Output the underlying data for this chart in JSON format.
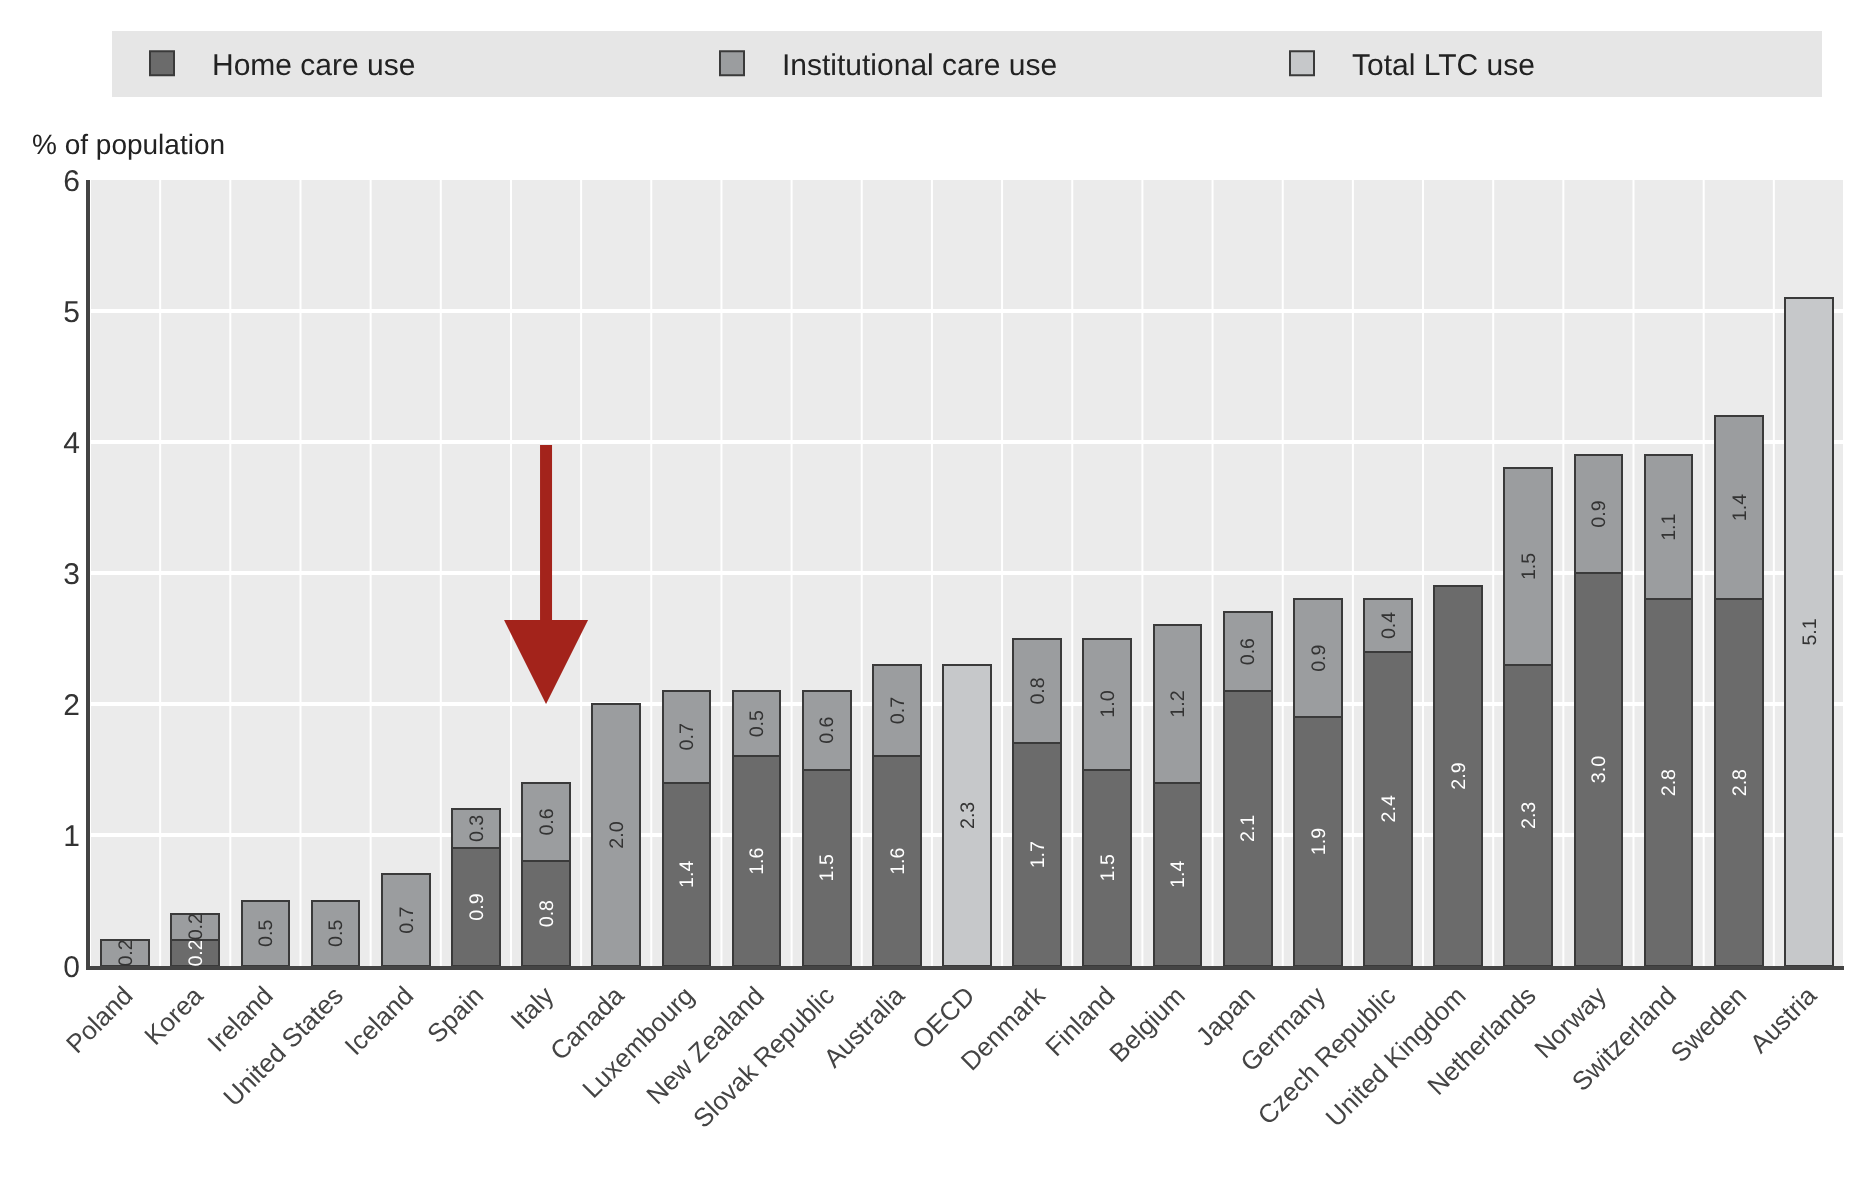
{
  "chart_data": {
    "type": "bar",
    "stacked": true,
    "ylabel": "% of population",
    "categories": [
      "Poland",
      "Korea",
      "Ireland",
      "United States",
      "Iceland",
      "Spain",
      "Italy",
      "Canada",
      "Luxembourg",
      "New Zealand",
      "Slovak Republic",
      "Australia",
      "OECD",
      "Denmark",
      "Finland",
      "Belgium",
      "Japan",
      "Germany",
      "Czech Republic",
      "United Kingdom",
      "Netherlands",
      "Norway",
      "Switzerland",
      "Sweden",
      "Austria"
    ],
    "series": [
      {
        "name": "Home care use",
        "color": "#6b6b6b",
        "values": [
          null,
          0.2,
          null,
          null,
          null,
          0.9,
          0.8,
          null,
          1.4,
          1.6,
          1.5,
          1.6,
          null,
          1.7,
          1.5,
          1.4,
          2.1,
          1.9,
          2.4,
          2.9,
          2.3,
          3.0,
          2.8,
          2.8,
          null
        ],
        "value_labels": [
          null,
          "0.2",
          null,
          null,
          null,
          "0.9",
          "0.8",
          null,
          "1.4",
          "1.6",
          "1.5",
          "1.6",
          null,
          "1.7",
          "1.5",
          "1.4",
          "2.1",
          "1.9",
          "2.4",
          "2.9",
          "2.3",
          "3.0",
          "2.8",
          "2.8",
          null
        ]
      },
      {
        "name": "Institutional care use",
        "color": "#9b9d9f",
        "values": [
          0.2,
          0.2,
          0.5,
          0.5,
          0.7,
          0.3,
          0.6,
          2.0,
          0.7,
          0.5,
          0.6,
          0.7,
          null,
          0.8,
          1.0,
          1.2,
          0.6,
          0.9,
          0.4,
          null,
          1.5,
          0.9,
          1.1,
          1.4,
          null
        ],
        "value_labels": [
          "0.2",
          "0.2",
          "0.5",
          "0.5",
          "0.7",
          "0.3",
          "0.6",
          "2.0",
          "0.7",
          "0.5",
          "0.6",
          "0.7",
          null,
          "0.8",
          "1.0",
          "1.2",
          "0.6",
          "0.9",
          "0.4",
          null,
          "1.5",
          "0.9",
          "1.1",
          "1.4",
          null
        ]
      },
      {
        "name": "Total LTC use",
        "color": "#c6c8ca",
        "values": [
          null,
          null,
          null,
          null,
          null,
          null,
          null,
          null,
          null,
          null,
          null,
          null,
          2.3,
          null,
          null,
          null,
          null,
          null,
          null,
          null,
          null,
          null,
          null,
          null,
          5.1
        ],
        "value_labels": [
          null,
          null,
          null,
          null,
          null,
          null,
          null,
          null,
          null,
          null,
          null,
          null,
          "2.3",
          null,
          null,
          null,
          null,
          null,
          null,
          null,
          null,
          null,
          null,
          null,
          "5.1"
        ]
      }
    ],
    "ylim": [
      0,
      6
    ],
    "yticks": [
      0,
      1,
      2,
      3,
      4,
      5,
      6
    ],
    "grid": true,
    "legend": "top"
  }
}
